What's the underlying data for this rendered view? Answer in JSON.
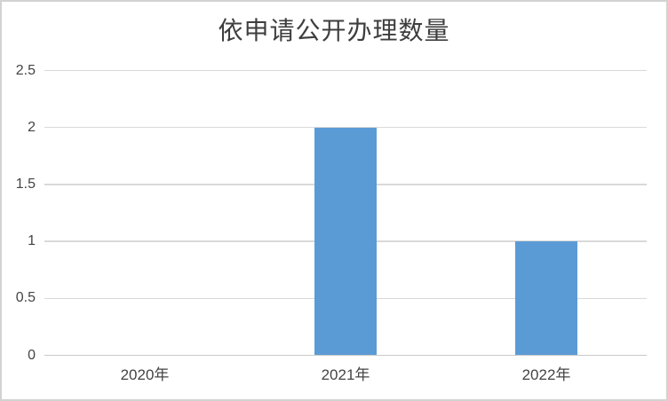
{
  "window": {
    "background": "#ffffff",
    "frame_border_color": "#d2d2d2"
  },
  "chart_data": {
    "type": "bar",
    "title": "依申请公开办理数量",
    "categories": [
      "2020年",
      "2021年",
      "2022年"
    ],
    "values": [
      0,
      2,
      1
    ],
    "xlabel": "",
    "ylabel": "",
    "ylim": [
      0,
      2.5
    ],
    "yticks": [
      0,
      0.5,
      1,
      1.5,
      2,
      2.5
    ],
    "grid": true,
    "legend": "none",
    "colors": {
      "bar": "#5B9BD5",
      "gridline": "#D9D9D9",
      "axis_line": "#C9C9C9",
      "tick_label": "#444444",
      "title": "#3E3E3E"
    }
  }
}
